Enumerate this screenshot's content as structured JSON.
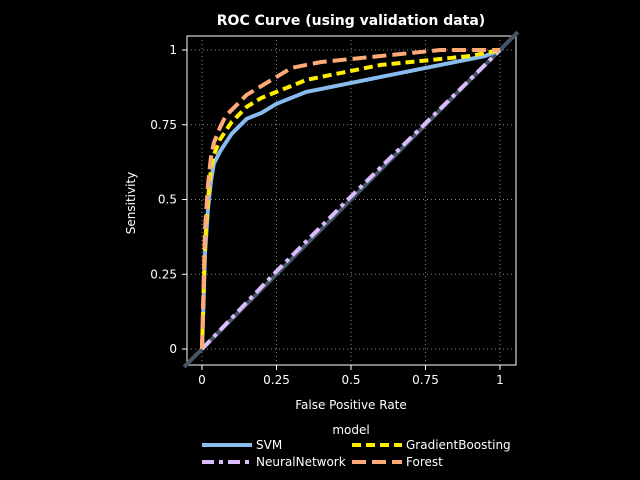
{
  "chart_data": {
    "type": "line",
    "title": "ROC Curve (using validation data)",
    "xlabel": "False Positive Rate",
    "ylabel": "Sensitivity",
    "xlim": [
      0,
      1
    ],
    "ylim": [
      0,
      1
    ],
    "xticks": [
      0,
      0.25,
      0.5,
      0.75,
      1
    ],
    "yticks": [
      0,
      0.25,
      0.5,
      0.75,
      1
    ],
    "xtick_labels": [
      "0",
      "0.25",
      "0.5",
      "0.75",
      "1"
    ],
    "ytick_labels": [
      "0",
      "0.25",
      "0.5",
      "0.75",
      "1"
    ],
    "grid": true,
    "legend": {
      "title": "model",
      "position": "bottom"
    },
    "series": [
      {
        "name": "SVM",
        "color": "#88bbee",
        "dash": "solid",
        "x": [
          0,
          0.005,
          0.01,
          0.02,
          0.03,
          0.04,
          0.06,
          0.08,
          0.1,
          0.12,
          0.15,
          0.2,
          0.25,
          0.3,
          0.35,
          0.4,
          0.5,
          0.6,
          0.7,
          0.8,
          0.9,
          0.95,
          1.0
        ],
        "y": [
          0,
          0.15,
          0.32,
          0.47,
          0.56,
          0.62,
          0.66,
          0.69,
          0.72,
          0.74,
          0.77,
          0.79,
          0.82,
          0.84,
          0.86,
          0.87,
          0.89,
          0.91,
          0.93,
          0.95,
          0.97,
          0.98,
          1.0
        ]
      },
      {
        "name": "GradientBoosting",
        "color": "#ffee00",
        "dash": "dash",
        "x": [
          0,
          0.005,
          0.01,
          0.02,
          0.03,
          0.04,
          0.06,
          0.08,
          0.1,
          0.12,
          0.15,
          0.2,
          0.25,
          0.3,
          0.35,
          0.4,
          0.5,
          0.6,
          0.7,
          0.8,
          0.9,
          0.95,
          1.0
        ],
        "y": [
          0,
          0.18,
          0.35,
          0.5,
          0.6,
          0.65,
          0.7,
          0.73,
          0.76,
          0.78,
          0.81,
          0.84,
          0.86,
          0.88,
          0.9,
          0.91,
          0.93,
          0.95,
          0.96,
          0.97,
          0.98,
          0.99,
          1.0
        ]
      },
      {
        "name": "NeuralNetwork",
        "color": "#ddbbff",
        "dash": "dashdot",
        "x": [
          0,
          0.25,
          0.5,
          0.75,
          1.0
        ],
        "y": [
          0,
          0.26,
          0.51,
          0.755,
          1.0
        ]
      },
      {
        "name": "Forest",
        "color": "#ffaa77",
        "dash": "longdash",
        "x": [
          0,
          0.005,
          0.01,
          0.02,
          0.03,
          0.04,
          0.06,
          0.08,
          0.1,
          0.12,
          0.15,
          0.2,
          0.25,
          0.3,
          0.35,
          0.4,
          0.5,
          0.6,
          0.7,
          0.8,
          0.9,
          0.95,
          1.0
        ],
        "y": [
          0,
          0.2,
          0.4,
          0.55,
          0.64,
          0.69,
          0.74,
          0.78,
          0.8,
          0.82,
          0.85,
          0.88,
          0.91,
          0.94,
          0.95,
          0.96,
          0.97,
          0.98,
          0.99,
          1.0,
          1.0,
          1.0,
          1.0
        ]
      }
    ],
    "reference_line": {
      "x": [
        0,
        1
      ],
      "y": [
        0,
        1
      ],
      "color": "#445566"
    }
  }
}
